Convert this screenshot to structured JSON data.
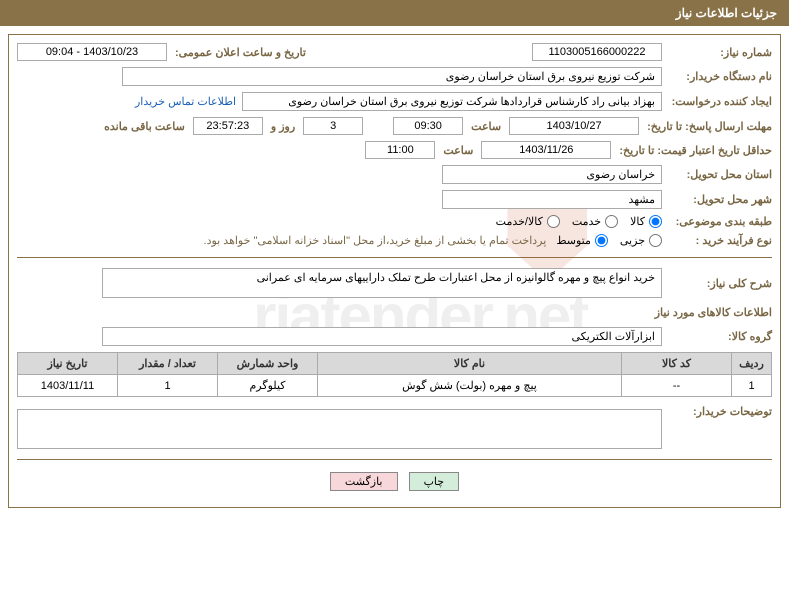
{
  "header_title": "جزئیات اطلاعات نیاز",
  "labels": {
    "need_number": "شماره نیاز:",
    "announce_datetime": "تاریخ و ساعت اعلان عمومی:",
    "buyer_org": "نام دستگاه خریدار:",
    "requester": "ایجاد کننده درخواست:",
    "contact_link": "اطلاعات تماس خریدار",
    "response_deadline": "مهلت ارسال پاسخ: تا تاریخ:",
    "min_validity": "حداقل تاریخ اعتبار قیمت: تا تاریخ:",
    "delivery_province": "استان محل تحویل:",
    "delivery_city": "شهر محل تحویل:",
    "classification": "طبقه بندی موضوعی:",
    "purchase_process": "نوع فرآیند خرید :",
    "time_word": "ساعت",
    "days_word": "روز و",
    "remaining": "ساعت باقی مانده",
    "payment_note": "پرداخت تمام یا بخشی از مبلغ خرید،از محل \"اسناد خزانه اسلامی\" خواهد بود.",
    "general_desc": "شرح کلی نیاز:",
    "goods_info": "اطلاعات کالاهای مورد نیاز",
    "goods_group": "گروه کالا:",
    "buyer_notes": "توضیحات خریدار:"
  },
  "values": {
    "need_number": "1103005166000222",
    "announce_datetime": "1403/10/23 - 09:04",
    "buyer_org": "شرکت توزیع نیروی برق استان خراسان رضوی",
    "requester": "بهزاد بیانی راد کارشناس قراردادها شرکت توزیع نیروی برق استان خراسان رضوی",
    "response_date": "1403/10/27",
    "response_time": "09:30",
    "days_remaining": "3",
    "countdown": "23:57:23",
    "validity_date": "1403/11/26",
    "validity_time": "11:00",
    "province": "خراسان رضوی",
    "city": "مشهد",
    "general_desc": "خرید انواع پیچ و مهره گالوانیزه از محل اعتبارات طرح تملک داراییهای سرمایه ای عمرانی",
    "goods_group": "ابزارآلات الکتریکی"
  },
  "radio_class": {
    "goods": "کالا",
    "service": "خدمت",
    "goods_service": "کالا/خدمت",
    "selected": "goods"
  },
  "radio_process": {
    "partial": "جزیی",
    "medium": "متوسط",
    "selected": "medium"
  },
  "table": {
    "headers": {
      "row": "ردیف",
      "code": "کد کالا",
      "name": "نام کالا",
      "unit": "واحد شمارش",
      "qty": "تعداد / مقدار",
      "date": "تاریخ نیاز"
    },
    "rows": [
      {
        "row": "1",
        "code": "--",
        "name": "پیچ و مهره (بولت) شش گوش",
        "unit": "کیلوگرم",
        "qty": "1",
        "date": "1403/11/11"
      }
    ]
  },
  "buttons": {
    "print": "چاپ",
    "back": "بازگشت"
  },
  "colors": {
    "brand": "#8a7248",
    "label": "#786644"
  }
}
